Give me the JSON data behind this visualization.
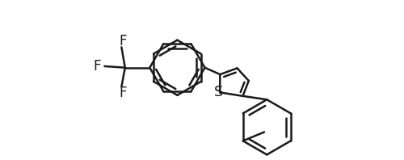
{
  "bg_color": "#ffffff",
  "line_color": "#1a1a1a",
  "line_width": 1.8,
  "font_size": 12,
  "figsize": [
    5.0,
    1.98
  ],
  "dpi": 100,
  "xlim": [
    0,
    10.0
  ],
  "ylim": [
    0.5,
    5.0
  ]
}
